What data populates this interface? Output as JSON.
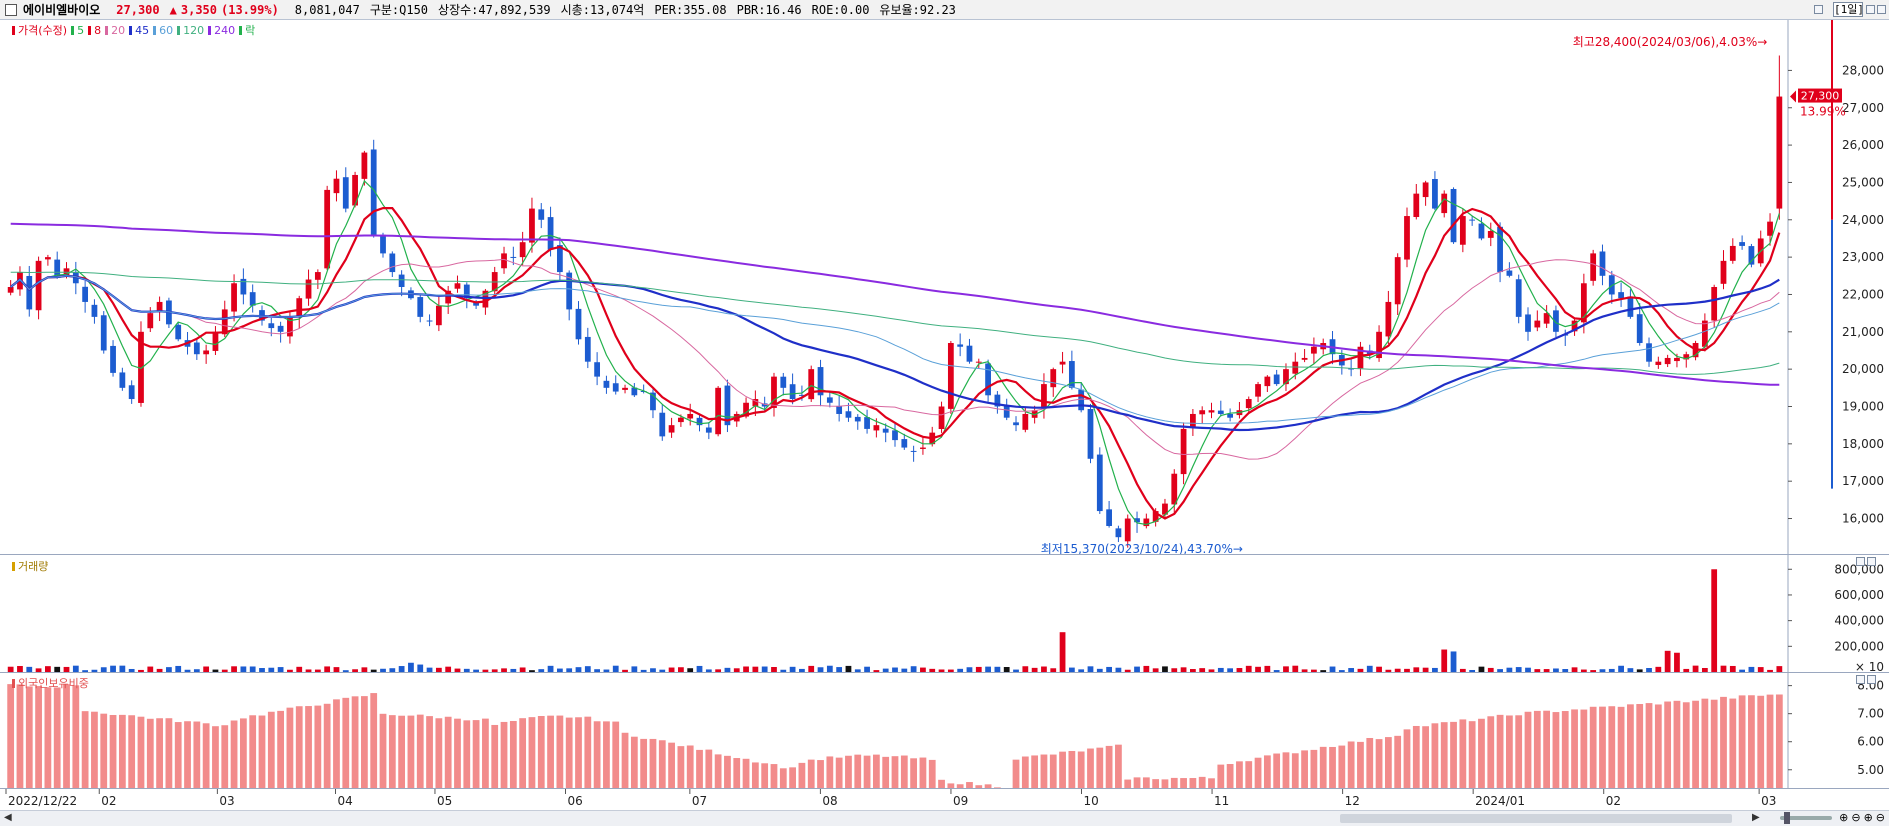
{
  "header": {
    "stock_name": "에이비엘바이오",
    "price": "27,300",
    "change_arrow": "▲",
    "change": "3,350",
    "change_pct": "(13.99%)",
    "volume": "8,081,047",
    "division": "구분:Q150",
    "listed_shares": "상장수:47,892,539",
    "market_cap": "시총:13,074억",
    "per": "PER:355.08",
    "pbr": "PBR:16.46",
    "roe": "ROE:0.00",
    "float_ratio": "유보율:92.23",
    "period_button": "[1일]"
  },
  "legends": {
    "price": [
      "가격(수정)",
      "5",
      "8",
      "20",
      "45",
      "60",
      "120",
      "240",
      "락"
    ],
    "volume": "거래량",
    "foreign": "외국인보유비중"
  },
  "annotations": {
    "high_label": "최고28,400(2024/03/06),4.03%→",
    "low_label": "최저15,370(2023/10/24),43.70%→",
    "current_price_tag": "27,300",
    "current_pct_tag": "13.99%",
    "volume_unit": "× 10"
  },
  "colors": {
    "up": "#e0001b",
    "down": "#1c5cd0",
    "ma5": "#22b14c",
    "ma8": "#e0001b",
    "ma20": "#d868a0",
    "ma45": "#1f2fc8",
    "ma60": "#5aa0d8",
    "ma120": "#40b080",
    "ma240": "#8a2be0",
    "foreign_bar": "#f28b8b"
  },
  "chart_data": [
    {
      "type": "candlestick",
      "name": "price",
      "y_ticks": [
        16000,
        17000,
        18000,
        19000,
        20000,
        21000,
        22000,
        23000,
        24000,
        25000,
        26000,
        27000,
        28000
      ],
      "y_tick_labels": [
        "16,000",
        "17,000",
        "18,000",
        "19,000",
        "20,000",
        "21,000",
        "22,000",
        "23,000",
        "24,000",
        "25,000",
        "26,000",
        "27,000",
        "28,000"
      ],
      "ylim": [
        15050,
        29350
      ],
      "x_labels": [
        "2022/12/22",
        "02",
        "03",
        "04",
        "05",
        "06",
        "07",
        "08",
        "09",
        "10",
        "11",
        "12",
        "2024/01",
        "02",
        "03"
      ],
      "closes": [
        22200,
        22600,
        21600,
        22900,
        23000,
        22500,
        22700,
        22300,
        21800,
        21400,
        20500,
        19900,
        19500,
        19200,
        21000,
        21500,
        21800,
        21200,
        20800,
        20600,
        20400,
        20500,
        21000,
        21600,
        22300,
        22000,
        21700,
        21300,
        21100,
        21000,
        21400,
        21900,
        22400,
        22600,
        24800,
        25100,
        24300,
        25200,
        25800,
        23600,
        23100,
        22600,
        22200,
        21900,
        21400,
        21300,
        21700,
        22100,
        22300,
        21900,
        21700,
        22100,
        22600,
        23100,
        23000,
        23400,
        24300,
        24000,
        23200,
        22600,
        21600,
        20800,
        20200,
        19800,
        19500,
        19400,
        19500,
        19300,
        19400,
        18900,
        18200,
        18500,
        18700,
        18800,
        18500,
        18300,
        19500,
        18500,
        18800,
        19100,
        19200,
        19000,
        19800,
        19500,
        19200,
        19300,
        20000,
        19300,
        19100,
        18800,
        18700,
        18600,
        18400,
        18500,
        18300,
        18100,
        17900,
        17800,
        17900,
        18300,
        19000,
        20700,
        20600,
        20200,
        20200,
        19300,
        19000,
        18700,
        18500,
        18800,
        18900,
        19600,
        20000,
        20200,
        19500,
        18900,
        17600,
        16200,
        15800,
        15500,
        16000,
        15900,
        16000,
        16200,
        16400,
        17200,
        18400,
        18800,
        18900,
        18900,
        18800,
        18700,
        18900,
        19200,
        19600,
        19800,
        19600,
        20000,
        20200,
        20300,
        20600,
        20700,
        20400,
        20100,
        20000,
        20600,
        20400,
        21000,
        21800,
        23000,
        24100,
        24700,
        25000,
        24300,
        24700,
        23400,
        24100,
        24000,
        23500,
        23700,
        22600,
        22500,
        21400,
        21000,
        21300,
        21500,
        21000,
        20900,
        21300,
        22300,
        23100,
        22500,
        22000,
        21900,
        21400,
        20700,
        20200,
        20200,
        20300,
        20300,
        20400,
        20700,
        21300,
        22200,
        22900,
        23300,
        23300,
        22800,
        23500,
        23950,
        27300
      ],
      "annotation_high": {
        "value": 28400,
        "date": "2024/03/06"
      },
      "annotation_low": {
        "value": 15370,
        "date": "2023/10/24"
      },
      "moving_averages": [
        5,
        8,
        20,
        45,
        60,
        120,
        240
      ]
    },
    {
      "type": "bar",
      "name": "volume",
      "unit": "× 10",
      "y_ticks": [
        200000,
        400000,
        600000,
        800000
      ],
      "y_tick_labels": [
        "200,000",
        "400,000",
        "600,000",
        "800,000"
      ],
      "ylim": [
        0,
        880000
      ],
      "spikes": [
        {
          "date_index": 43,
          "value": 72000
        },
        {
          "date_index": 44,
          "value": 58000
        },
        {
          "date_index": 113,
          "value": 310000
        },
        {
          "date_index": 154,
          "value": 175000
        },
        {
          "date_index": 155,
          "value": 160000
        },
        {
          "date_index": 178,
          "value": 165000
        },
        {
          "date_index": 179,
          "value": 150000
        },
        {
          "date_index": 183,
          "value": 800000
        }
      ]
    },
    {
      "type": "bar",
      "name": "foreign_ownership",
      "y_ticks": [
        5,
        6,
        7,
        8
      ],
      "y_tick_labels": [
        "5.00",
        "6.00",
        "7.00",
        "8.00"
      ],
      "ylim": [
        4.35,
        8.45
      ]
    }
  ]
}
